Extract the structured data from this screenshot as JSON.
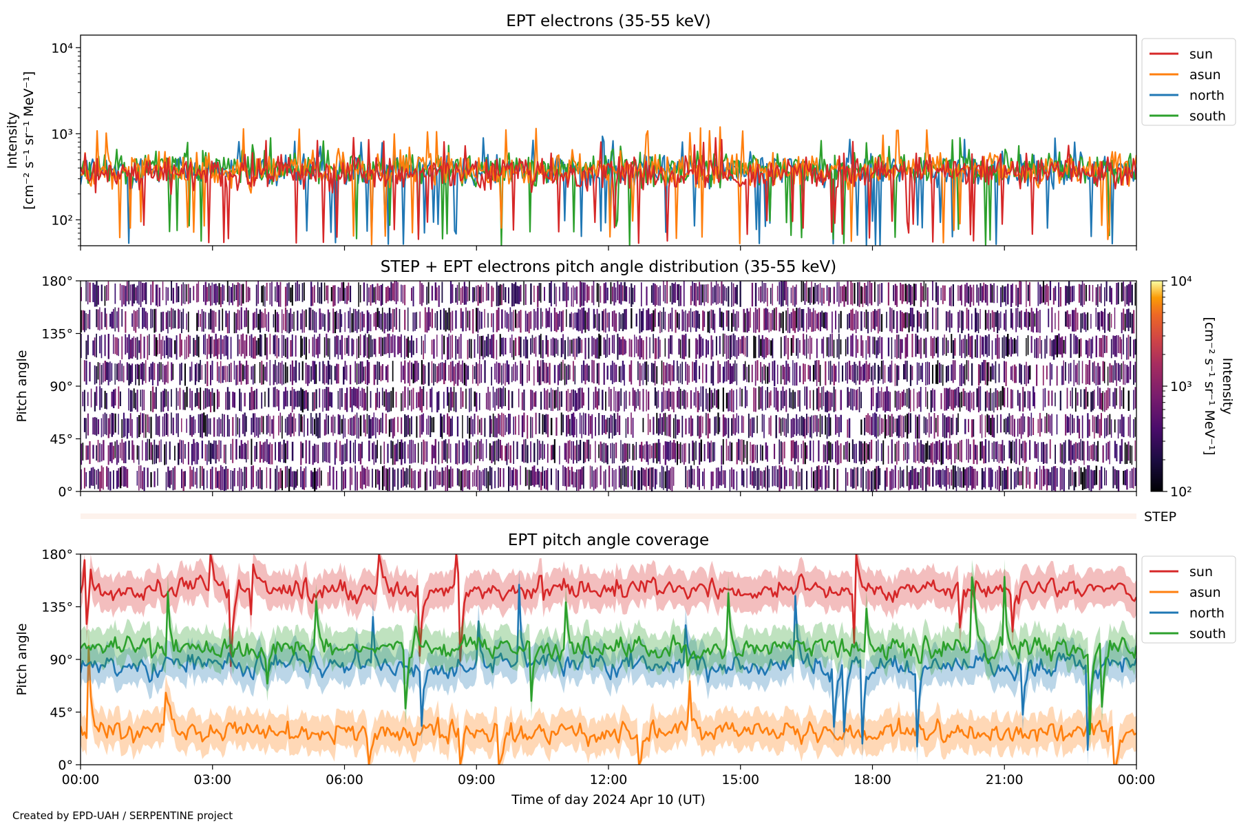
{
  "credit": "Created by EPD-UAH / SERPENTINE project",
  "chart_data": [
    {
      "id": "panel1",
      "type": "line",
      "title": "EPT electrons (35-55 keV)",
      "ylabel": [
        "Intensity",
        "[cm⁻² s⁻¹ sr⁻¹ MeV⁻¹]"
      ],
      "y_scale": "log",
      "ylim": [
        50,
        14000
      ],
      "y_ticks": [
        {
          "value": 100,
          "label": "10²"
        },
        {
          "value": 1000,
          "label": "10³"
        },
        {
          "value": 10000,
          "label": "10⁴"
        }
      ],
      "x_range_hours": [
        0,
        24
      ],
      "legend": {
        "placement": "upper-right-outside"
      },
      "series": [
        {
          "name": "north",
          "color": "#1f77b4",
          "typical": 380,
          "range": [
            50,
            950
          ]
        },
        {
          "name": "south",
          "color": "#2ca02c",
          "typical": 400,
          "range": [
            50,
            900
          ]
        },
        {
          "name": "asun",
          "color": "#ff7f0e",
          "typical": 380,
          "range": [
            50,
            1200
          ]
        },
        {
          "name": "sun",
          "color": "#d62728",
          "typical": 350,
          "range": [
            50,
            900
          ]
        }
      ],
      "legend_order": [
        "sun",
        "asun",
        "north",
        "south"
      ]
    },
    {
      "id": "panel2",
      "type": "heatmap",
      "title": "STEP + EPT electrons pitch angle distribution (35-55 keV)",
      "ylabel": "Pitch angle",
      "ylim": [
        0,
        180
      ],
      "y_ticks": [
        {
          "value": 0,
          "label": "0°"
        },
        {
          "value": 45,
          "label": "45°"
        },
        {
          "value": 90,
          "label": "90°"
        },
        {
          "value": 135,
          "label": "135°"
        },
        {
          "value": 180,
          "label": "180°"
        }
      ],
      "x_range_hours": [
        0,
        24
      ],
      "colormap": "inferno",
      "colorbar": {
        "label": [
          "Intensity",
          "[cm⁻² s⁻¹ sr⁻¹ MeV⁻¹]"
        ],
        "scale": "log",
        "range": [
          100,
          10000
        ],
        "ticks": [
          {
            "value": 100,
            "label": "10²"
          },
          {
            "value": 1000,
            "label": "10³"
          },
          {
            "value": 10000,
            "label": "10⁴"
          }
        ]
      },
      "typical_intensity": 250
    },
    {
      "id": "panel_step",
      "type": "heatmap",
      "label": "STEP",
      "color": "#fdf2ec"
    },
    {
      "id": "panel3",
      "type": "line",
      "title": "EPT pitch angle coverage",
      "ylabel": "Pitch angle",
      "xlabel": "Time of day 2024 Apr 10 (UT)",
      "ylim": [
        0,
        180
      ],
      "y_ticks": [
        {
          "value": 0,
          "label": "0°"
        },
        {
          "value": 45,
          "label": "45°"
        },
        {
          "value": 90,
          "label": "90°"
        },
        {
          "value": 135,
          "label": "135°"
        },
        {
          "value": 180,
          "label": "180°"
        }
      ],
      "x_range_hours": [
        0,
        24
      ],
      "x_ticks": [
        {
          "value": 0,
          "label": "00:00"
        },
        {
          "value": 3,
          "label": "03:00"
        },
        {
          "value": 6,
          "label": "06:00"
        },
        {
          "value": 9,
          "label": "09:00"
        },
        {
          "value": 12,
          "label": "12:00"
        },
        {
          "value": 15,
          "label": "15:00"
        },
        {
          "value": 18,
          "label": "18:00"
        },
        {
          "value": 21,
          "label": "21:00"
        },
        {
          "value": 24,
          "label": "00:00"
        }
      ],
      "legend": {
        "placement": "upper-right-outside"
      },
      "series": [
        {
          "name": "sun",
          "color": "#d62728",
          "typical": 150,
          "band": 15
        },
        {
          "name": "asun",
          "color": "#ff7f0e",
          "typical": 28,
          "band": 15
        },
        {
          "name": "north",
          "color": "#1f77b4",
          "typical": 85,
          "band": 15
        },
        {
          "name": "south",
          "color": "#2ca02c",
          "typical": 100,
          "band": 15
        }
      ]
    }
  ]
}
